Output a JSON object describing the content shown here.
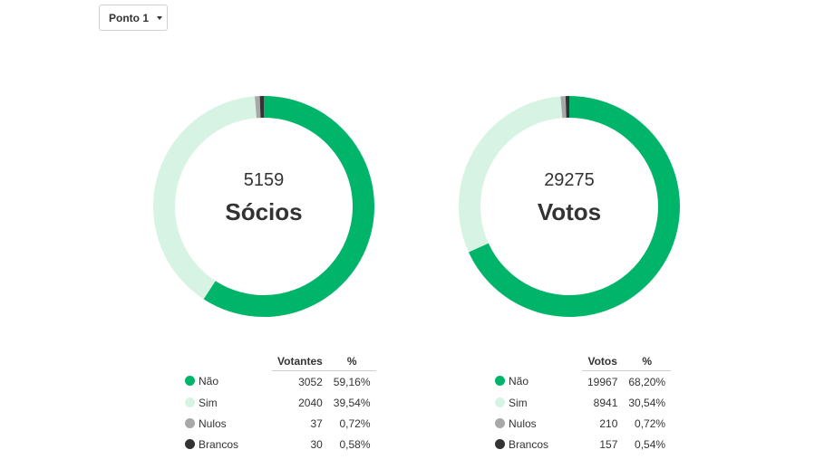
{
  "dropdown": {
    "label": "Ponto 1"
  },
  "colors": {
    "nao": "#00b46a",
    "sim": "#d6f3e4",
    "nulos": "#a8a8a8",
    "brancos": "#333333"
  },
  "charts": [
    {
      "center_value": "5159",
      "center_label": "Sócios",
      "table": {
        "col_count": "Votantes",
        "col_pct": "%",
        "rows": [
          {
            "label": "Não",
            "count": "3052",
            "pct": "59,16%",
            "color": "#00b46a"
          },
          {
            "label": "Sim",
            "count": "2040",
            "pct": "39,54%",
            "color": "#d6f3e4"
          },
          {
            "label": "Nulos",
            "count": "37",
            "pct": "0,72%",
            "color": "#a8a8a8"
          },
          {
            "label": "Brancos",
            "count": "30",
            "pct": "0,58%",
            "color": "#333333"
          }
        ]
      }
    },
    {
      "center_value": "29275",
      "center_label": "Votos",
      "table": {
        "col_count": "Votos",
        "col_pct": "%",
        "rows": [
          {
            "label": "Não",
            "count": "19967",
            "pct": "68,20%",
            "color": "#00b46a"
          },
          {
            "label": "Sim",
            "count": "8941",
            "pct": "30,54%",
            "color": "#d6f3e4"
          },
          {
            "label": "Nulos",
            "count": "210",
            "pct": "0,72%",
            "color": "#a8a8a8"
          },
          {
            "label": "Brancos",
            "count": "157",
            "pct": "0,54%",
            "color": "#333333"
          }
        ]
      }
    }
  ],
  "chart_data": [
    {
      "type": "pie",
      "categories": [
        "Não",
        "Sim",
        "Nulos",
        "Brancos"
      ],
      "values": [
        3052,
        2040,
        37,
        30
      ],
      "total": 5159
    },
    {
      "type": "pie",
      "categories": [
        "Não",
        "Sim",
        "Nulos",
        "Brancos"
      ],
      "values": [
        19967,
        8941,
        210,
        157
      ],
      "total": 29275
    }
  ]
}
